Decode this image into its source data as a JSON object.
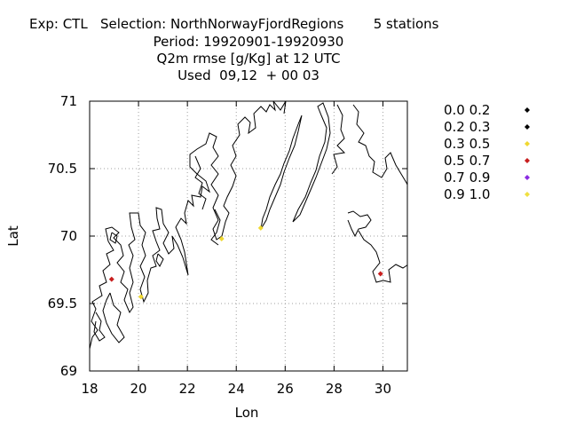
{
  "title": {
    "line1": "Exp: CTL   Selection: NorthNorwayFjordRegions       5 stations",
    "line2": "Period: 19920901-19920930",
    "line3": "Q2m rmse [g/Kg] at  12 UTC",
    "line4": "Used  09,12  + 00 03"
  },
  "chart_data": {
    "type": "scatter",
    "xlabel": "Lon",
    "ylabel": "Lat",
    "xlim": [
      18,
      31
    ],
    "ylim": [
      69,
      71
    ],
    "xticks": [
      "18",
      "20",
      "22",
      "24",
      "26",
      "28",
      "30"
    ],
    "yticks": [
      "69",
      "69.5",
      "70",
      "70.5",
      "71"
    ],
    "grid": true,
    "legend_position": "right",
    "legend": [
      {
        "label": "0.0 0.2",
        "color": "#000000"
      },
      {
        "label": "0.2 0.3",
        "color": "#000000"
      },
      {
        "label": "0.3 0.5",
        "color": "#f0d830"
      },
      {
        "label": "0.5 0.7",
        "color": "#c81e1e"
      },
      {
        "label": "0.7 0.9",
        "color": "#8a2be2"
      },
      {
        "label": "0.9 1.0",
        "color": "#f0e040"
      }
    ],
    "points": [
      {
        "lon": 18.9,
        "lat": 69.68,
        "class": "0.5 0.7"
      },
      {
        "lon": 20.1,
        "lat": 69.55,
        "class": "0.3 0.5"
      },
      {
        "lon": 23.4,
        "lat": 69.98,
        "class": "0.3 0.5"
      },
      {
        "lon": 25.0,
        "lat": 70.06,
        "class": "0.3 0.5"
      },
      {
        "lon": 29.9,
        "lat": 69.72,
        "class": "0.5 0.7"
      }
    ]
  }
}
